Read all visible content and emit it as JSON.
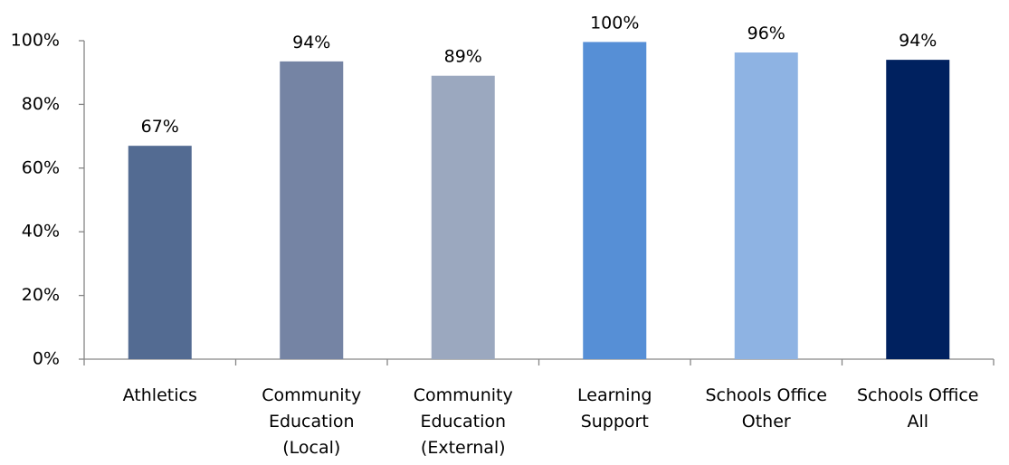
{
  "chart_data": {
    "type": "bar",
    "title": "",
    "xlabel": "",
    "ylabel": "",
    "ylim": [
      0,
      100
    ],
    "y_ticks": [
      0,
      20,
      40,
      60,
      80,
      100
    ],
    "y_tick_labels": [
      "0%",
      "20%",
      "40%",
      "60%",
      "80%",
      "100%"
    ],
    "grid": false,
    "legend": "none",
    "categories": [
      {
        "lines": [
          "Athletics"
        ]
      },
      {
        "lines": [
          "Community",
          "Education",
          "(Local)"
        ]
      },
      {
        "lines": [
          "Community",
          "Education",
          "(External)"
        ]
      },
      {
        "lines": [
          "Learning",
          "Support"
        ]
      },
      {
        "lines": [
          "Schools Office",
          "Other"
        ]
      },
      {
        "lines": [
          "Schools Office",
          "All"
        ]
      }
    ],
    "values": [
      67,
      93.5,
      89,
      99.6,
      96.3,
      94
    ],
    "data_labels": [
      "67%",
      "94%",
      "89%",
      "100%",
      "96%",
      "94%"
    ],
    "colors": [
      "#536b92",
      "#7584a4",
      "#9ba8bf",
      "#568fd6",
      "#8eb3e3",
      "#00215f"
    ]
  }
}
